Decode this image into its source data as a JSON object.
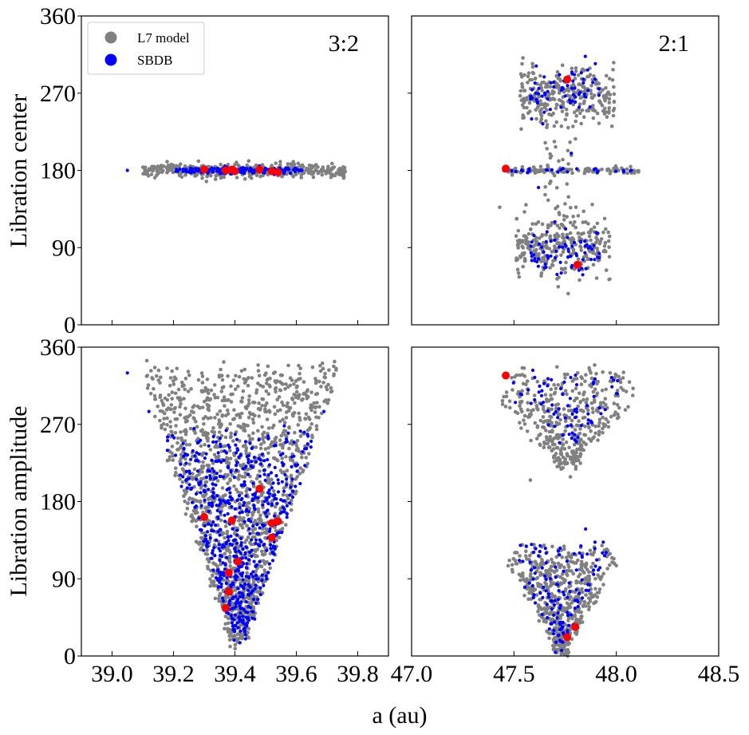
{
  "figure": {
    "xlabel": "a (au)",
    "ylabel_top": "Libration center",
    "ylabel_bottom": "Libration amplitude",
    "legend": [
      {
        "label": "L7 model",
        "color": "#808080"
      },
      {
        "label": "SBDB",
        "color": "#0000ff"
      }
    ],
    "colors": {
      "model": "#808080",
      "sbdb": "#0000ff",
      "highlight": "#ff0000"
    }
  },
  "chart_data": [
    {
      "id": "res32_center",
      "type": "scatter",
      "resonance_label": "3:2",
      "ylabel": "Libration center",
      "xlim": [
        38.9,
        39.9
      ],
      "ylim": [
        0,
        360
      ],
      "xticks": [
        39.0,
        39.2,
        39.4,
        39.6,
        39.8
      ],
      "xtick_labels": [],
      "yticks": [
        0,
        90,
        180,
        270,
        360
      ],
      "ytick_labels": [
        "0",
        "90",
        "180",
        "270",
        "360"
      ],
      "distributions": [
        {
          "series": "model",
          "count": 420,
          "x_center": 39.43,
          "x_halfwidth": 0.33,
          "y_center": 180,
          "y_spread": 4
        },
        {
          "series": "sbdb",
          "count": 150,
          "x_center": 39.41,
          "x_halfwidth": 0.21,
          "y_center": 180,
          "y_spread": 2
        }
      ],
      "sparse_points": [
        {
          "series": "sbdb",
          "x": 39.05,
          "y": 180
        },
        {
          "series": "model",
          "x": 39.75,
          "y": 174
        }
      ],
      "highlight": [
        {
          "x": 39.3,
          "y": 181
        },
        {
          "x": 39.37,
          "y": 180
        },
        {
          "x": 39.4,
          "y": 179
        },
        {
          "x": 39.39,
          "y": 181
        },
        {
          "x": 39.48,
          "y": 181
        },
        {
          "x": 39.52,
          "y": 179
        },
        {
          "x": 39.54,
          "y": 178
        }
      ]
    },
    {
      "id": "res21_center",
      "type": "scatter",
      "resonance_label": "2:1",
      "ylabel": "",
      "xlim": [
        47.0,
        48.5
      ],
      "ylim": [
        0,
        360
      ],
      "xticks": [
        47.5,
        48.0
      ],
      "xtick_labels": [],
      "yticks": [
        90,
        180,
        270
      ],
      "ytick_labels": [],
      "distributions": [
        {
          "series": "model",
          "count": 280,
          "x_center": 47.76,
          "x_halfwidth": 0.23,
          "y_center": 268,
          "y_spread": 17
        },
        {
          "series": "sbdb",
          "count": 65,
          "x_center": 47.75,
          "x_halfwidth": 0.17,
          "y_center": 272,
          "y_spread": 14
        },
        {
          "series": "model",
          "count": 110,
          "x_center": 47.78,
          "x_halfwidth": 0.33,
          "y_center": 180,
          "y_spread": 2
        },
        {
          "series": "sbdb",
          "count": 25,
          "x_center": 47.78,
          "x_halfwidth": 0.3,
          "y_center": 180,
          "y_spread": 1.5
        },
        {
          "series": "model",
          "count": 280,
          "x_center": 47.74,
          "x_halfwidth": 0.23,
          "y_center": 92,
          "y_spread": 17
        },
        {
          "series": "sbdb",
          "count": 70,
          "x_center": 47.75,
          "x_halfwidth": 0.17,
          "y_center": 85,
          "y_spread": 12
        },
        {
          "series": "model",
          "count": 45,
          "x_center": 47.73,
          "x_halfwidth": 0.08,
          "y_center": 180,
          "y_spread": 55
        }
      ],
      "sparse_points": [
        {
          "series": "sbdb",
          "x": 47.62,
          "y": 160
        },
        {
          "series": "sbdb",
          "x": 47.78,
          "y": 200
        },
        {
          "series": "model",
          "x": 47.43,
          "y": 137
        },
        {
          "series": "sbdb",
          "x": 47.7,
          "y": 120
        }
      ],
      "highlight": [
        {
          "x": 47.76,
          "y": 286
        },
        {
          "x": 47.46,
          "y": 182
        },
        {
          "x": 47.81,
          "y": 70
        }
      ]
    },
    {
      "id": "res32_amplitude",
      "type": "scatter",
      "resonance_label": "",
      "ylabel": "Libration amplitude",
      "xlim": [
        38.9,
        39.9
      ],
      "ylim": [
        0,
        360
      ],
      "xticks": [
        39.0,
        39.2,
        39.4,
        39.6,
        39.8
      ],
      "xtick_labels": [
        "39.0",
        "39.2",
        "39.4",
        "39.6",
        "39.8"
      ],
      "yticks": [
        0,
        90,
        180,
        270,
        360
      ],
      "ytick_labels": [
        "0",
        "90",
        "180",
        "270",
        "360"
      ],
      "distributions": [
        {
          "series": "model",
          "count": 1500,
          "shape": "v",
          "x_center": 39.41,
          "x_halfwidth_top": 0.33,
          "x_halfwidth_bottom": 0.02,
          "y_min": 15,
          "y_max": 335
        },
        {
          "series": "sbdb",
          "count": 620,
          "shape": "v",
          "x_center": 39.42,
          "x_halfwidth_top": 0.25,
          "x_halfwidth_bottom": 0.02,
          "y_min": 25,
          "y_max": 260
        }
      ],
      "sparse_points": [
        {
          "series": "sbdb",
          "x": 39.05,
          "y": 330
        },
        {
          "series": "model",
          "x": 39.73,
          "y": 335
        },
        {
          "series": "sbdb",
          "x": 39.12,
          "y": 285
        },
        {
          "series": "sbdb",
          "x": 39.69,
          "y": 285
        }
      ],
      "highlight": [
        {
          "x": 39.48,
          "y": 195
        },
        {
          "x": 39.3,
          "y": 162
        },
        {
          "x": 39.39,
          "y": 158
        },
        {
          "x": 39.52,
          "y": 155
        },
        {
          "x": 39.54,
          "y": 157
        },
        {
          "x": 39.52,
          "y": 138
        },
        {
          "x": 39.41,
          "y": 110
        },
        {
          "x": 39.38,
          "y": 97
        },
        {
          "x": 39.38,
          "y": 75
        },
        {
          "x": 39.37,
          "y": 56
        }
      ]
    },
    {
      "id": "res21_amplitude",
      "type": "scatter",
      "resonance_label": "",
      "ylabel": "",
      "xlim": [
        47.0,
        48.5
      ],
      "ylim": [
        0,
        360
      ],
      "xticks": [
        47.0,
        47.5,
        48.0,
        48.5
      ],
      "xtick_labels": [
        "47.0",
        "47.5",
        "48.0",
        "48.5"
      ],
      "yticks": [
        90,
        180,
        270
      ],
      "ytick_labels": [],
      "distributions": [
        {
          "series": "model",
          "count": 420,
          "shape": "wing",
          "x_center": 47.76,
          "x_halfwidth_top": 0.36,
          "x_halfwidth_bottom": 0.03,
          "y_min": 225,
          "y_max": 330
        },
        {
          "series": "sbdb",
          "count": 75,
          "shape": "wing",
          "x_center": 47.76,
          "x_halfwidth_top": 0.33,
          "x_halfwidth_bottom": 0.04,
          "y_min": 255,
          "y_max": 330
        },
        {
          "series": "model",
          "count": 550,
          "shape": "v",
          "x_center": 47.73,
          "x_halfwidth_top": 0.3,
          "x_halfwidth_bottom": 0.02,
          "y_min": 5,
          "y_max": 125
        },
        {
          "series": "sbdb",
          "count": 130,
          "shape": "v",
          "x_center": 47.73,
          "x_halfwidth_top": 0.25,
          "x_halfwidth_bottom": 0.02,
          "y_min": 10,
          "y_max": 130
        }
      ],
      "sparse_points": [
        {
          "series": "model",
          "x": 47.58,
          "y": 205
        },
        {
          "series": "sbdb",
          "x": 47.85,
          "y": 148
        },
        {
          "series": "model",
          "x": 47.76,
          "y": 225
        },
        {
          "series": "sbdb",
          "x": 47.56,
          "y": 128
        }
      ],
      "highlight": [
        {
          "x": 47.46,
          "y": 327
        },
        {
          "x": 47.8,
          "y": 34
        },
        {
          "x": 47.76,
          "y": 22
        }
      ]
    }
  ]
}
